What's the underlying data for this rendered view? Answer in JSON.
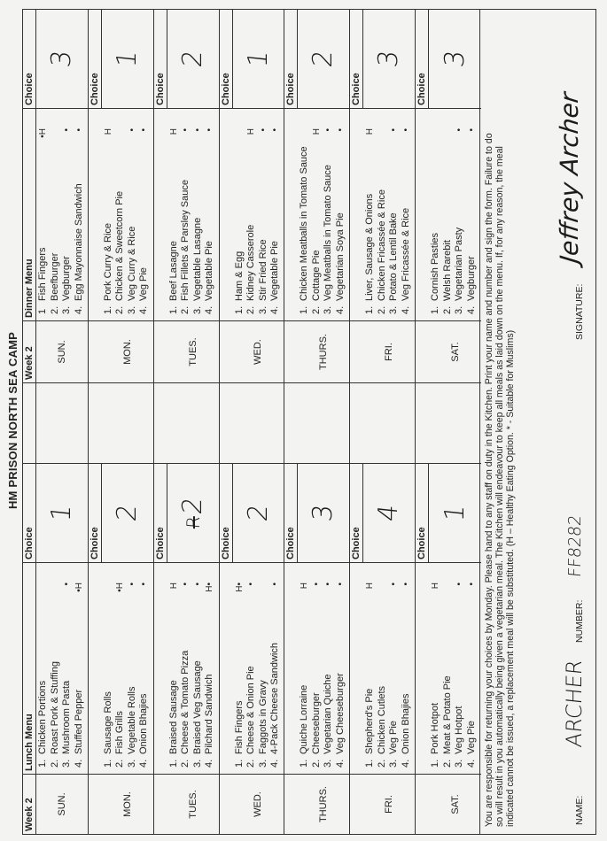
{
  "title": "HM PRISON NORTH SEA CAMP",
  "headers": {
    "week": "Week 2",
    "lunch_menu": "Lunch Menu",
    "dinner_menu": "Dinner Menu",
    "choice": "Choice"
  },
  "days": [
    {
      "day": "SUN.",
      "lunch": [
        {
          "n": "1.",
          "name": "Chicken Portions",
          "mark": ""
        },
        {
          "n": "2.",
          "name": "Roast Pork & Stuffing",
          "mark": ""
        },
        {
          "n": "3.",
          "name": "Mushroom Pasta",
          "mark": "•"
        },
        {
          "n": "4.",
          "name": "Stuffed Pepper",
          "mark": "•H"
        }
      ],
      "lunch_choice": {
        "struck": "",
        "value": "1"
      },
      "dinner": [
        {
          "n": "1",
          "name": "Fish Fingers",
          "mark": "•H"
        },
        {
          "n": "2.",
          "name": "Beefburger",
          "mark": ""
        },
        {
          "n": "3.",
          "name": "Vegburger",
          "mark": "•"
        },
        {
          "n": "4.",
          "name": "Egg Mayonnaise Sandwich",
          "mark": "•"
        }
      ],
      "dinner_choice": "3"
    },
    {
      "day": "MON.",
      "lunch": [
        {
          "n": "1.",
          "name": "Sausage Rolls",
          "mark": ""
        },
        {
          "n": "2.",
          "name": "Fish Grills",
          "mark": "•H"
        },
        {
          "n": "3.",
          "name": "Vegetable Rolls",
          "mark": "•"
        },
        {
          "n": "4.",
          "name": "Onion Bhajies",
          "mark": "•"
        }
      ],
      "lunch_choice": {
        "struck": "",
        "value": "2"
      },
      "dinner": [
        {
          "n": "1.",
          "name": "Pork Curry & Rice",
          "mark": "H"
        },
        {
          "n": "2.",
          "name": "Chicken & Sweetcorn Pie",
          "mark": ""
        },
        {
          "n": "3.",
          "name": "Veg Curry & Rice",
          "mark": "•"
        },
        {
          "n": "4.",
          "name": "Veg Pie",
          "mark": "•"
        }
      ],
      "dinner_choice": "1"
    },
    {
      "day": "TUES.",
      "lunch": [
        {
          "n": "1.",
          "name": "Braised Sausage",
          "mark": "H"
        },
        {
          "n": "2.",
          "name": "Cheese & Tomato Pizza",
          "mark": "•"
        },
        {
          "n": "3.",
          "name": "Braised Veg Sausage",
          "mark": "•"
        },
        {
          "n": "4.",
          "name": "Pilchard Sandwich",
          "mark": "H•"
        }
      ],
      "lunch_choice": {
        "struck": "R",
        "value": "2"
      },
      "dinner": [
        {
          "n": "1.",
          "name": "Beef Lasagne",
          "mark": "H"
        },
        {
          "n": "2.",
          "name": "Fish Fillets & Parsley Sauce",
          "mark": "•"
        },
        {
          "n": "3.",
          "name": "Vegetable Lasagne",
          "mark": "•"
        },
        {
          "n": "4.",
          "name": "Vegetable Pie",
          "mark": "•"
        }
      ],
      "dinner_choice": "2"
    },
    {
      "day": "WED.",
      "lunch": [
        {
          "n": "1.",
          "name": "Fish Fingers",
          "mark": "H•"
        },
        {
          "n": "2.",
          "name": "Cheese & Onion Pie",
          "mark": "•"
        },
        {
          "n": "3.",
          "name": "Faggots in Gravy",
          "mark": ""
        },
        {
          "n": "4.",
          "name": "4-Pack Cheese Sandwich",
          "mark": "•"
        }
      ],
      "lunch_choice": {
        "struck": "",
        "value": "2"
      },
      "dinner": [
        {
          "n": "1.",
          "name": "Ham & Egg",
          "mark": ""
        },
        {
          "n": "2.",
          "name": "Kidney Casserole",
          "mark": "H"
        },
        {
          "n": "3.",
          "name": "Stir Fried Rice",
          "mark": "•"
        },
        {
          "n": "4.",
          "name": "Vegetable Pie",
          "mark": "•"
        }
      ],
      "dinner_choice": "1"
    },
    {
      "day": "THURS.",
      "lunch": [
        {
          "n": "1.",
          "name": "Quiche Lorraine",
          "mark": "H"
        },
        {
          "n": "2.",
          "name": "Cheeseburger",
          "mark": "•"
        },
        {
          "n": "3.",
          "name": "Vegetarian Quiche",
          "mark": "•"
        },
        {
          "n": "4.",
          "name": "Veg Cheeseburger",
          "mark": "•"
        }
      ],
      "lunch_choice": {
        "struck": "",
        "value": "3"
      },
      "dinner": [
        {
          "n": "1.",
          "name": "Chicken Meatballs in Tomato Sauce",
          "mark": ""
        },
        {
          "n": "2.",
          "name": "Cottage Pie",
          "mark": "H"
        },
        {
          "n": "3.",
          "name": "Veg Meatballs in Tomato Sauce",
          "mark": "•"
        },
        {
          "n": "4.",
          "name": "Vegetarian Soya Pie",
          "mark": "•"
        }
      ],
      "dinner_choice": "2"
    },
    {
      "day": "FRI.",
      "lunch": [
        {
          "n": "1.",
          "name": "Shepherd's Pie",
          "mark": "H"
        },
        {
          "n": "2.",
          "name": "Chicken Cutlets",
          "mark": ""
        },
        {
          "n": "3.",
          "name": "Veg Pie",
          "mark": "•"
        },
        {
          "n": "4.",
          "name": "Onion Bhajies",
          "mark": "•"
        }
      ],
      "lunch_choice": {
        "struck": "",
        "value": "4"
      },
      "dinner": [
        {
          "n": "1.",
          "name": "Liver, Sausage & Onions",
          "mark": "H"
        },
        {
          "n": "2.",
          "name": "Chicken Fricassée & Rice",
          "mark": ""
        },
        {
          "n": "3.",
          "name": "Potato & Lentil Bake",
          "mark": "•"
        },
        {
          "n": "4.",
          "name": "Veg Fricassée & Rice",
          "mark": "•"
        }
      ],
      "dinner_choice": "3"
    },
    {
      "day": "SAT.",
      "lunch": [
        {
          "n": "1.",
          "name": "Pork Hotpot",
          "mark": "H"
        },
        {
          "n": "2.",
          "name": "Meat & Potato Pie",
          "mark": ""
        },
        {
          "n": "3.",
          "name": "Veg Hotpot",
          "mark": "•"
        },
        {
          "n": "4.",
          "name": "Veg Pie",
          "mark": "•"
        }
      ],
      "lunch_choice": {
        "struck": "",
        "value": "1"
      },
      "dinner": [
        {
          "n": "1.",
          "name": "Cornish Pasties",
          "mark": ""
        },
        {
          "n": "2.",
          "name": "Welsh Rarebit",
          "mark": ""
        },
        {
          "n": "3.",
          "name": "Vegetarian Pasty",
          "mark": "•"
        },
        {
          "n": "4.",
          "name": "Vegburger",
          "mark": "•"
        }
      ],
      "dinner_choice": "3"
    }
  ],
  "notes": {
    "lines": [
      "You are responsible for returning your choices by Monday.  Please hand to any staff on duty in the Kitchen.  Print your name and number and sign the form.  Failure to do",
      "so will result in you automatically being given a vegetarian meal.  The Kitchen will endeavour to keep all meals as laid down on the menu.  If, for any reason, the meal",
      "indicated cannot be issued, a replacement meal will be substituted.  (H – Healthy Eating Option.  * - Suitable for Muslims)"
    ],
    "name_label": "NAME:",
    "name_value": "ARCHER",
    "number_label": "NUMBER:",
    "number_value": "FF8282",
    "signature_label": "SIGNATURE:",
    "signature_value": "Jeffrey Archer"
  }
}
